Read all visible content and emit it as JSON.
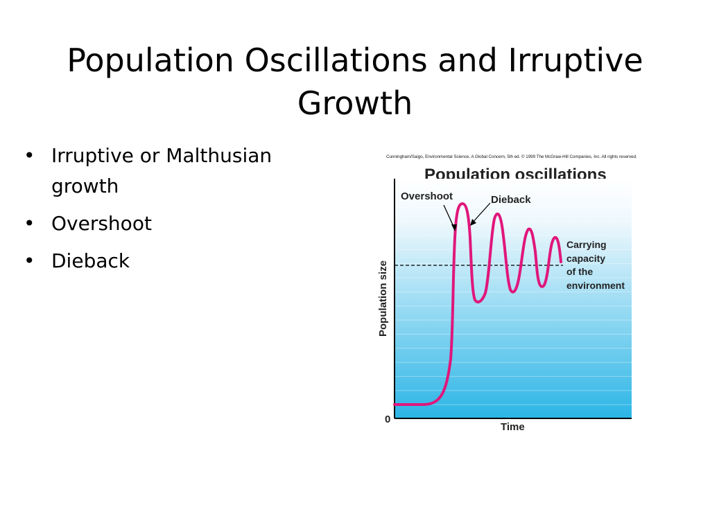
{
  "slide": {
    "title": "Population Oscillations and Irruptive Growth",
    "bullets": [
      "Irruptive or Malthusian growth",
      "Overshoot",
      "Dieback"
    ],
    "bullet_glyph": "•"
  },
  "figure": {
    "credit": "Cunningham/Saigo, Environmental Science, A Global Concern, 5th ed. © 1999 The McGraw-Hill Companies, Inc. All rights reserved.",
    "title": "Population oscillations",
    "ylabel": "Population size",
    "xlabel": "Time",
    "origin_label": "0",
    "annotations": {
      "overshoot": "Overshoot",
      "dieback": "Dieback",
      "carrying_capacity": [
        "Carrying",
        "capacity",
        "of the",
        "environment"
      ]
    },
    "colors": {
      "curve": "#e0177b",
      "band_dark": "#2bb5e6",
      "band_light": "#e9f6fc",
      "dashed_line": "#000000"
    }
  }
}
